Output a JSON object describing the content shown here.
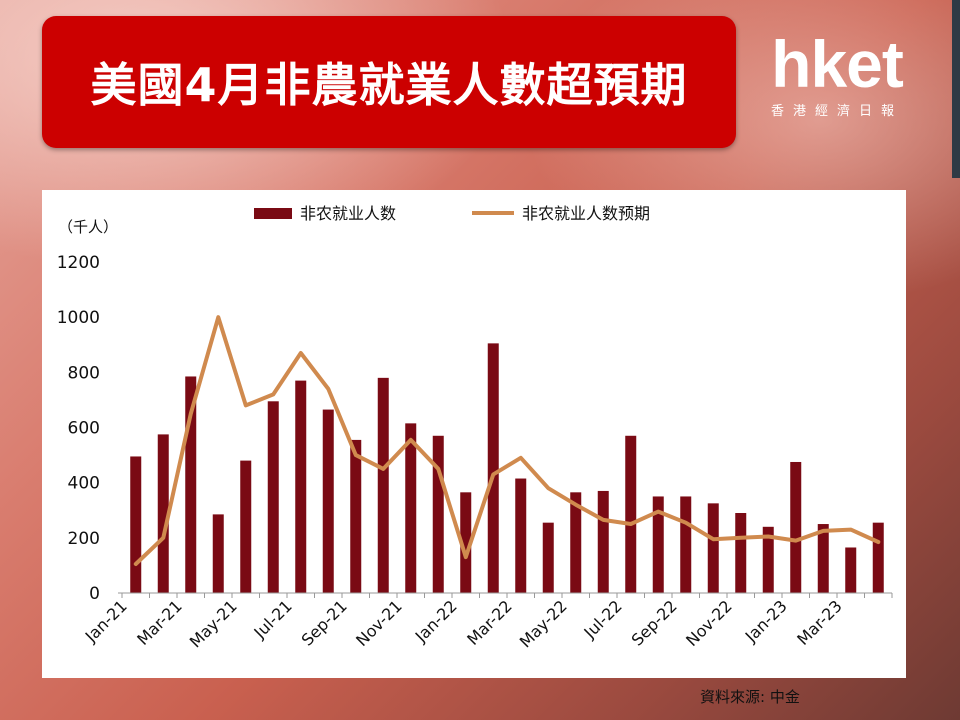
{
  "header": {
    "title": "美國4月非農就業人數超預期"
  },
  "logo": {
    "brand": "hket",
    "subtitle": "香港經濟日報"
  },
  "source": "資料來源: 中金",
  "colors": {
    "title_bg": "#cc0000",
    "bar": "#7a0a14",
    "line": "#d08a4e"
  },
  "chart_data": {
    "type": "bar",
    "unit_label": "（千人）",
    "legend_placement": "top",
    "grid": false,
    "ylim": [
      0,
      1200
    ],
    "yticks": [
      0,
      200,
      400,
      600,
      800,
      1000,
      1200
    ],
    "x": [
      "Jan-21",
      "Feb-21",
      "Mar-21",
      "Apr-21",
      "May-21",
      "Jun-21",
      "Jul-21",
      "Aug-21",
      "Sep-21",
      "Oct-21",
      "Nov-21",
      "Dec-21",
      "Jan-22",
      "Feb-22",
      "Mar-22",
      "Apr-22",
      "May-22",
      "Jun-22",
      "Jul-22",
      "Aug-22",
      "Sep-22",
      "Oct-22",
      "Nov-22",
      "Dec-22",
      "Jan-23",
      "Feb-23",
      "Mar-23",
      "Apr-23"
    ],
    "xtick_labels": [
      "Jan-21",
      "Mar-21",
      "May-21",
      "Jul-21",
      "Sep-21",
      "Nov-21",
      "Jan-22",
      "Mar-22",
      "May-22",
      "Jul-22",
      "Sep-22",
      "Nov-22",
      "Jan-23",
      "Mar-23"
    ],
    "series": [
      {
        "name": "非农就业人数",
        "kind": "bar",
        "values": [
          495,
          575,
          785,
          285,
          480,
          695,
          770,
          665,
          555,
          780,
          615,
          570,
          365,
          905,
          415,
          255,
          365,
          370,
          570,
          350,
          350,
          325,
          290,
          240,
          475,
          250,
          165,
          255
        ]
      },
      {
        "name": "非农就业人数预期",
        "kind": "line",
        "values": [
          105,
          200,
          650,
          1000,
          680,
          720,
          870,
          740,
          500,
          450,
          555,
          450,
          130,
          430,
          490,
          380,
          320,
          265,
          250,
          295,
          255,
          195,
          200,
          205,
          190,
          225,
          230,
          185
        ]
      }
    ]
  }
}
